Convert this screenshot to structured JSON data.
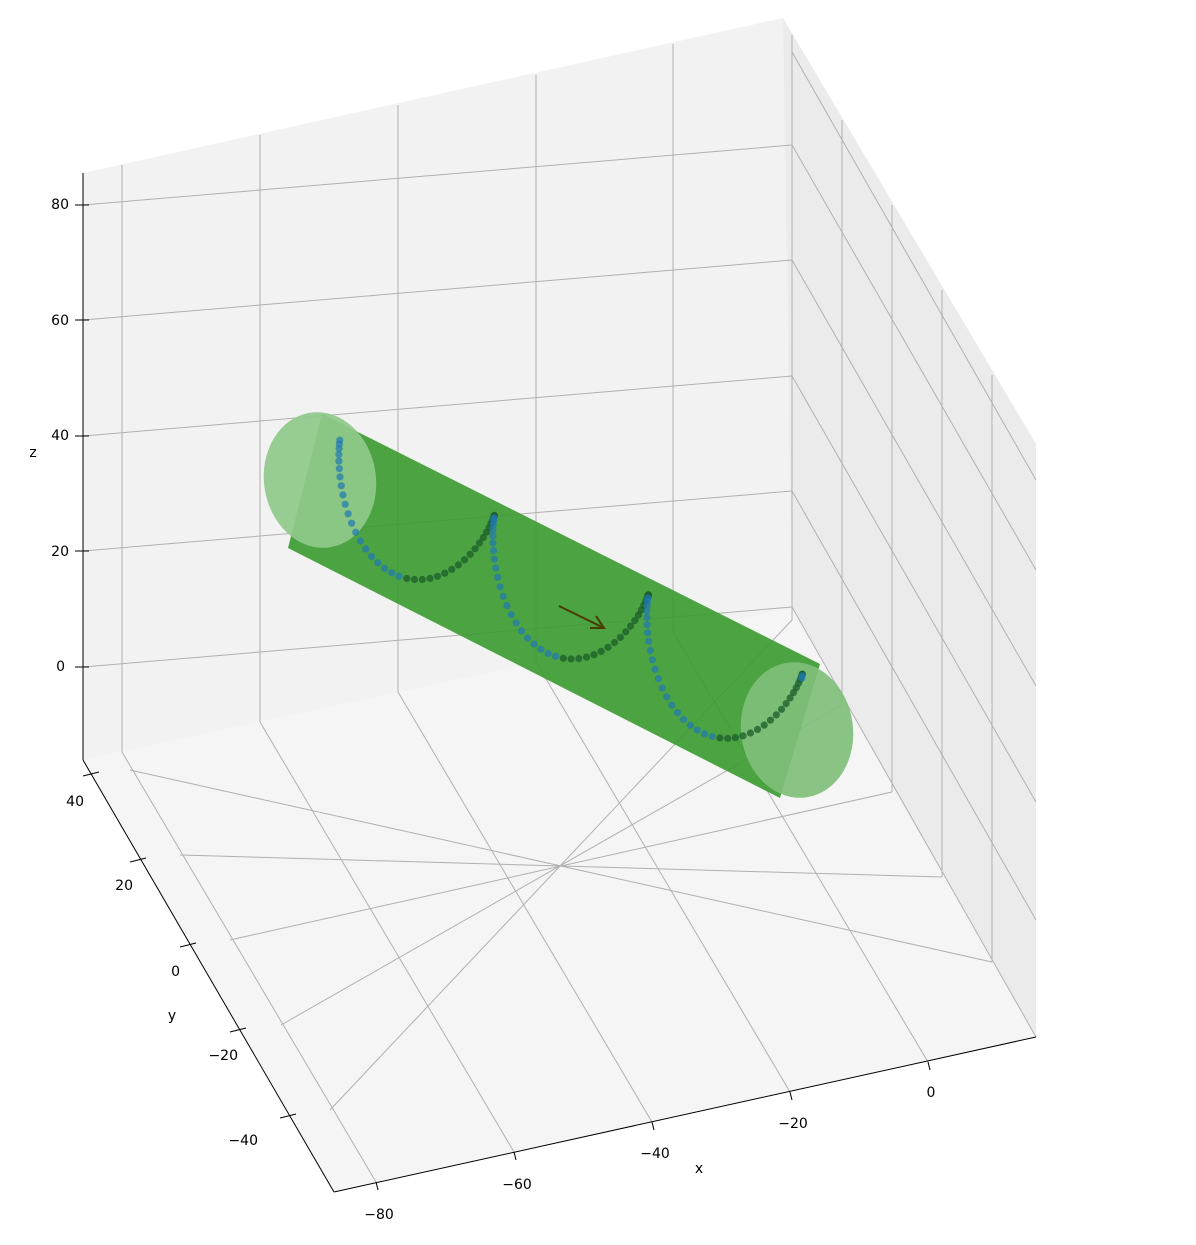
{
  "chart_data": {
    "type": "scatter",
    "projection": "3d",
    "title": "",
    "xlabel": "x",
    "ylabel": "y",
    "zlabel": "z",
    "x_ticks": [
      "−80",
      "−60",
      "−40",
      "−20",
      "0"
    ],
    "y_ticks": [
      "−40",
      "−20",
      "0",
      "20",
      "40"
    ],
    "z_ticks": [
      "0",
      "20",
      "40",
      "60",
      "80"
    ],
    "xlim": [
      -85,
      8
    ],
    "ylim": [
      -50,
      42
    ],
    "zlim": [
      -18,
      85
    ],
    "grid": true,
    "cylinder": {
      "axis_start": [
        -74,
        0,
        30
      ],
      "axis_end": [
        2,
        0,
        0
      ],
      "radius": 14,
      "color": "#3a9a2f",
      "end_cap_color": "#8fc98a"
    },
    "helix": {
      "turns": 3,
      "points": 126,
      "color": "#1f77b4",
      "inner_color": "#1a5e2a"
    },
    "arrow": {
      "start": [
        -37,
        0,
        15
      ],
      "end": [
        -28,
        0,
        11
      ],
      "color": "#4a3a00"
    }
  }
}
